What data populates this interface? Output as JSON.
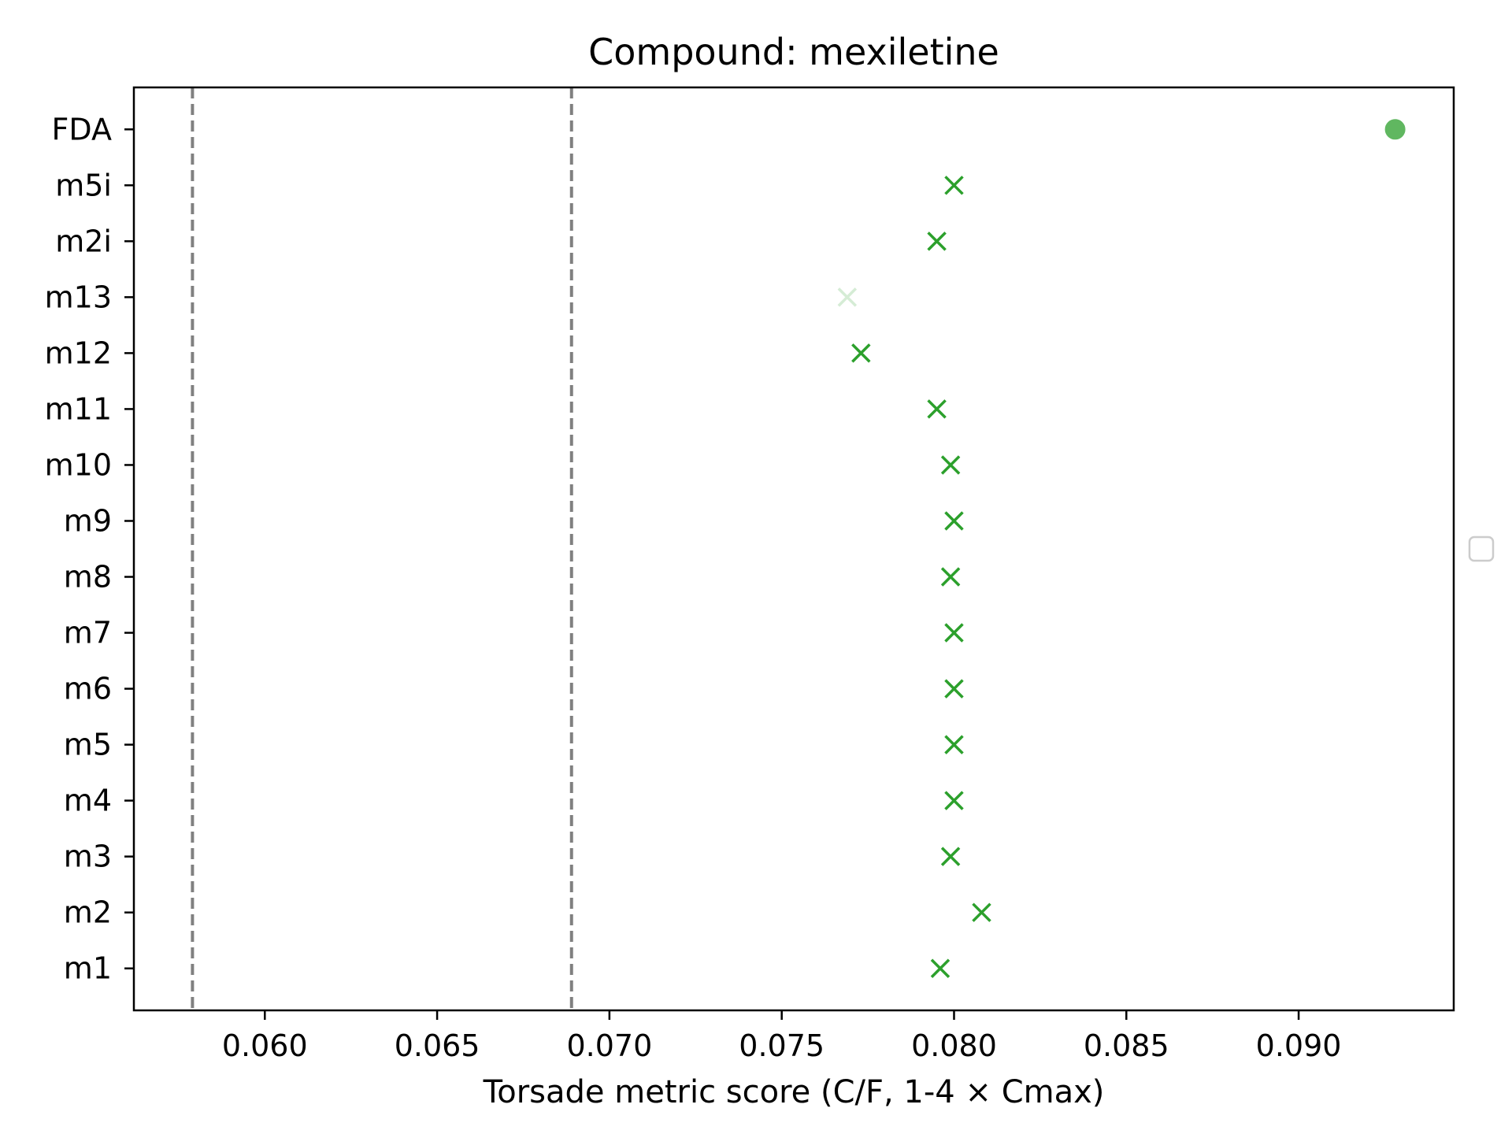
{
  "chart_data": {
    "type": "scatter",
    "title": "Compound: mexiletine",
    "xlabel": "Torsade metric score (C/F, 1-4 × Cmax)",
    "ylabel": "",
    "xlim": [
      0.0562,
      0.0945
    ],
    "xticks": [
      0.06,
      0.065,
      0.07,
      0.075,
      0.08,
      0.085,
      0.09
    ],
    "xtick_labels": [
      "0.060",
      "0.065",
      "0.070",
      "0.075",
      "0.080",
      "0.085",
      "0.090"
    ],
    "categories": [
      "m1",
      "m2",
      "m3",
      "m4",
      "m5",
      "m6",
      "m7",
      "m8",
      "m9",
      "m10",
      "m11",
      "m12",
      "m13",
      "m2i",
      "m5i",
      "FDA"
    ],
    "points": [
      {
        "category": "m1",
        "x": 0.0796,
        "marker": "x",
        "alpha": 1.0
      },
      {
        "category": "m2",
        "x": 0.0808,
        "marker": "x",
        "alpha": 1.0
      },
      {
        "category": "m3",
        "x": 0.0799,
        "marker": "x",
        "alpha": 1.0
      },
      {
        "category": "m4",
        "x": 0.08,
        "marker": "x",
        "alpha": 1.0
      },
      {
        "category": "m5",
        "x": 0.08,
        "marker": "x",
        "alpha": 1.0
      },
      {
        "category": "m6",
        "x": 0.08,
        "marker": "x",
        "alpha": 1.0
      },
      {
        "category": "m7",
        "x": 0.08,
        "marker": "x",
        "alpha": 1.0
      },
      {
        "category": "m8",
        "x": 0.0799,
        "marker": "x",
        "alpha": 1.0
      },
      {
        "category": "m9",
        "x": 0.08,
        "marker": "x",
        "alpha": 1.0
      },
      {
        "category": "m10",
        "x": 0.0799,
        "marker": "x",
        "alpha": 1.0
      },
      {
        "category": "m11",
        "x": 0.0795,
        "marker": "x",
        "alpha": 1.0
      },
      {
        "category": "m12",
        "x": 0.0773,
        "marker": "x",
        "alpha": 1.0
      },
      {
        "category": "m13",
        "x": 0.0769,
        "marker": "x",
        "alpha": 0.2
      },
      {
        "category": "m2i",
        "x": 0.0795,
        "marker": "x",
        "alpha": 1.0
      },
      {
        "category": "m5i",
        "x": 0.08,
        "marker": "x",
        "alpha": 1.0
      },
      {
        "category": "FDA",
        "x": 0.0928,
        "marker": "circle",
        "alpha": 0.75
      }
    ],
    "reference_lines": [
      {
        "x": 0.0579,
        "style": "dashed",
        "color": "#808080"
      },
      {
        "x": 0.0689,
        "style": "dashed",
        "color": "#808080"
      }
    ],
    "marker_color": "#2ca02c",
    "grid": false,
    "legend": {
      "placement": "center-right",
      "entries": []
    }
  }
}
